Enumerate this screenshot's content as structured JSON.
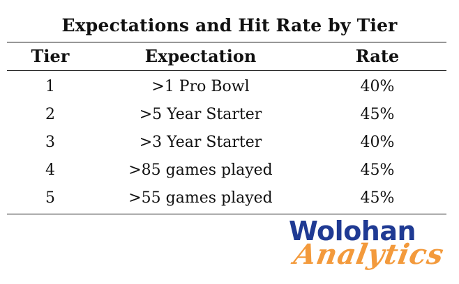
{
  "title": "Expectations and Hit Rate by Tier",
  "headers": {
    "tier": "Tier",
    "expectation": "Expectation",
    "rate": "Rate"
  },
  "rows": [
    {
      "tier": "1",
      "expectation": ">1 Pro Bowl",
      "rate": "40%"
    },
    {
      "tier": "2",
      "expectation": ">5 Year Starter",
      "rate": "45%"
    },
    {
      "tier": "3",
      "expectation": ">3 Year Starter",
      "rate": "40%"
    },
    {
      "tier": "4",
      "expectation": ">85 games played",
      "rate": "45%"
    },
    {
      "tier": "5",
      "expectation": ">55 games played",
      "rate": "45%"
    }
  ],
  "logo": {
    "line1": "Wolohan",
    "line2": "Analytics",
    "colors": {
      "line1": "#1f3a93",
      "line2": "#f39a3c"
    }
  }
}
